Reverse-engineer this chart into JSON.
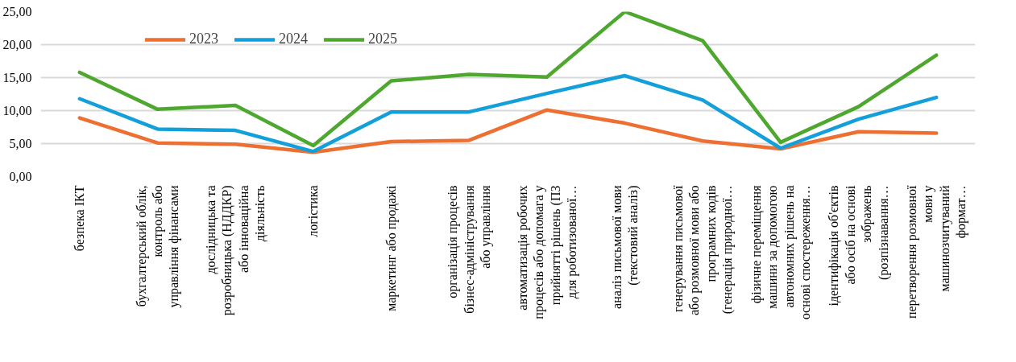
{
  "chart_data": {
    "type": "line",
    "categories": [
      "безпека ІКТ",
      "бухгалтерський облік,\nконтроль або\nуправління фінансами",
      "дослідницька та\nрозробницька (НДДКР)\nабо інноваційна\nдіяльність",
      "логістика",
      "маркетинг або продажі",
      "організація процесів\nбізнес-адміністрування\nабо управління",
      "автоматизація робочих\nпроцесів або допомага у\nприйнятті рішень (ПЗ\nдля роботизованої…",
      "аналіз письмової мови\n(текстовий аналіз)",
      "генерування письмової\nабо розмовної мови або\nпрограмних кодів\n(генерація природної…",
      "фізичне переміщення\nмашини за допомогою\nавтономних рішень на\nоснові спостереження…",
      "ідентифікація об'єктів\nабо осіб на основі\nзображень\n(розпізнавання…",
      "перетворення розмовної\nмови у\nмашинозчитуваний\nформат…"
    ],
    "series": [
      {
        "name": "2023",
        "color": "#ed7032",
        "values": [
          8.9,
          5.1,
          4.9,
          3.7,
          5.3,
          5.5,
          10.1,
          8.1,
          5.4,
          4.2,
          6.8,
          6.6
        ]
      },
      {
        "name": "2024",
        "color": "#139fd9",
        "values": [
          11.8,
          7.2,
          7.0,
          3.8,
          9.8,
          9.8,
          12.6,
          15.3,
          11.6,
          4.3,
          8.7,
          12.0
        ]
      },
      {
        "name": "2025",
        "color": "#4ea72e",
        "values": [
          15.8,
          10.2,
          10.8,
          4.7,
          14.5,
          15.5,
          15.1,
          25.0,
          20.6,
          5.2,
          10.6,
          18.4
        ]
      }
    ],
    "ylim": [
      0,
      25
    ],
    "yticks": [
      {
        "value": 0,
        "label": "0,00"
      },
      {
        "value": 5,
        "label": "5,00"
      },
      {
        "value": 10,
        "label": "10,00"
      },
      {
        "value": 15,
        "label": "15,00"
      },
      {
        "value": 20,
        "label": "20,00"
      },
      {
        "value": 25,
        "label": "25,00"
      }
    ],
    "grid": "y",
    "legend": "top",
    "marker": "none",
    "line_style": "solid"
  }
}
